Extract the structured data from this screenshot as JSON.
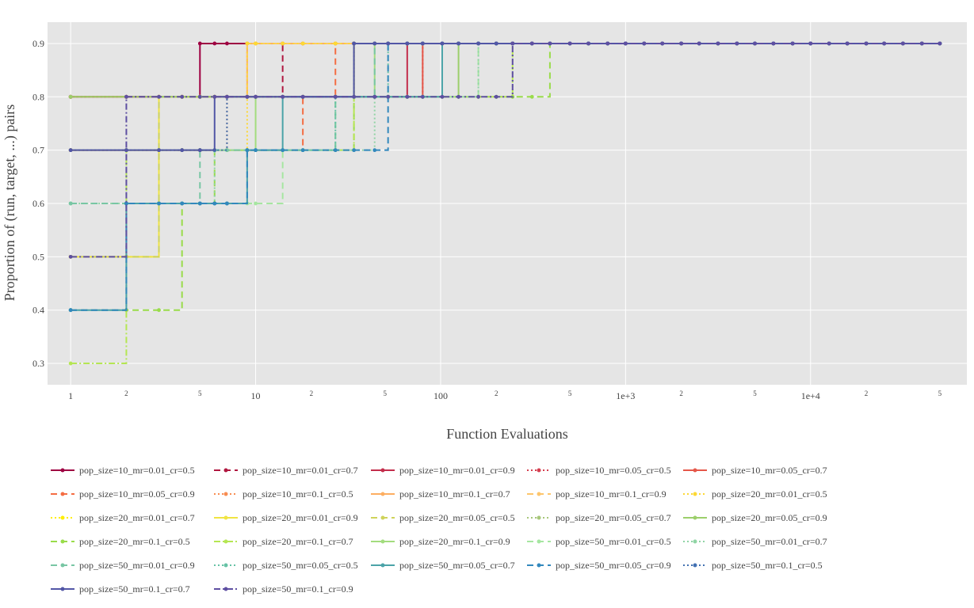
{
  "chart_data": {
    "type": "line",
    "line_shape": "step",
    "xlabel": "Function Evaluations",
    "ylabel": "Proportion of (run, target, ...) pairs",
    "x_scale": "log",
    "xlim": [
      0.75,
      70000
    ],
    "ylim": [
      0.26,
      0.94
    ],
    "y_ticks": [
      0.3,
      0.4,
      0.5,
      0.6,
      0.7,
      0.8,
      0.9
    ],
    "x_ticks": [
      {
        "value": 1,
        "label": "1",
        "major": true
      },
      {
        "value": 2,
        "label": "2",
        "major": false
      },
      {
        "value": 5,
        "label": "5",
        "major": false
      },
      {
        "value": 10,
        "label": "10",
        "major": true
      },
      {
        "value": 20,
        "label": "2",
        "major": false
      },
      {
        "value": 50,
        "label": "5",
        "major": false
      },
      {
        "value": 100,
        "label": "100",
        "major": true
      },
      {
        "value": 200,
        "label": "2",
        "major": false
      },
      {
        "value": 500,
        "label": "5",
        "major": false
      },
      {
        "value": 1000,
        "label": "1e+3",
        "major": true
      },
      {
        "value": 2000,
        "label": "2",
        "major": false
      },
      {
        "value": 5000,
        "label": "5",
        "major": false
      },
      {
        "value": 10000,
        "label": "1e+4",
        "major": true
      },
      {
        "value": 20000,
        "label": "2",
        "major": false
      },
      {
        "value": 50000,
        "label": "5",
        "major": false
      }
    ],
    "grid": true,
    "legend_position": "bottom",
    "x_end": 50000,
    "series": [
      {
        "name": "pop_size=10_mr=0.01_cr=0.5",
        "color": "#9e0142",
        "dash": "solid",
        "steps": [
          [
            1,
            0.8
          ],
          [
            5,
            0.9
          ]
        ]
      },
      {
        "name": "pop_size=10_mr=0.01_cr=0.7",
        "color": "#b0163f",
        "dash": "dash",
        "steps": [
          [
            1,
            0.8
          ],
          [
            14,
            0.9
          ]
        ]
      },
      {
        "name": "pop_size=10_mr=0.01_cr=0.9",
        "color": "#c32d4b",
        "dash": "solid",
        "steps": [
          [
            1,
            0.8
          ],
          [
            66,
            0.9
          ]
        ]
      },
      {
        "name": "pop_size=10_mr=0.05_cr=0.5",
        "color": "#d53e4f",
        "dash": "dot",
        "steps": [
          [
            1,
            0.8
          ],
          [
            80,
            0.9
          ]
        ]
      },
      {
        "name": "pop_size=10_mr=0.05_cr=0.7",
        "color": "#e55749",
        "dash": "solid",
        "steps": [
          [
            1,
            0.8
          ],
          [
            80,
            0.9
          ]
        ]
      },
      {
        "name": "pop_size=10_mr=0.05_cr=0.9",
        "color": "#f46d43",
        "dash": "dash",
        "steps": [
          [
            1,
            0.7
          ],
          [
            18,
            0.8
          ],
          [
            27,
            0.9
          ]
        ]
      },
      {
        "name": "pop_size=10_mr=0.1_cr=0.5",
        "color": "#f88d52",
        "dash": "dot",
        "steps": [
          [
            1,
            0.7
          ],
          [
            7,
            0.8
          ],
          [
            9,
            0.9
          ]
        ]
      },
      {
        "name": "pop_size=10_mr=0.1_cr=0.7",
        "color": "#fdae61",
        "dash": "solid",
        "steps": [
          [
            1,
            0.7
          ],
          [
            3,
            0.8
          ],
          [
            9,
            0.9
          ]
        ]
      },
      {
        "name": "pop_size=10_mr=0.1_cr=0.9",
        "color": "#fdc56c",
        "dash": "dash",
        "steps": [
          [
            1,
            0.7
          ],
          [
            3,
            0.8
          ],
          [
            9,
            0.9
          ]
        ]
      },
      {
        "name": "pop_size=20_mr=0.01_cr=0.5",
        "color": "#fdd835",
        "dash": "dot",
        "steps": [
          [
            1,
            0.7
          ],
          [
            9,
            0.8
          ],
          [
            9,
            0.9
          ]
        ]
      },
      {
        "name": "pop_size=20_mr=0.01_cr=0.7",
        "color": "#ffee00",
        "dash": "dot",
        "steps": [
          [
            1,
            0.5
          ],
          [
            3,
            0.8
          ],
          [
            34,
            0.9
          ]
        ]
      },
      {
        "name": "pop_size=20_mr=0.01_cr=0.9",
        "color": "#f0e442",
        "dash": "solid",
        "steps": [
          [
            1,
            0.5
          ],
          [
            3,
            0.8
          ],
          [
            34,
            0.9
          ]
        ]
      },
      {
        "name": "pop_size=20_mr=0.05_cr=0.5",
        "color": "#cfd35a",
        "dash": "dash",
        "steps": [
          [
            1,
            0.5
          ],
          [
            3,
            0.8
          ],
          [
            34,
            0.9
          ]
        ]
      },
      {
        "name": "pop_size=20_mr=0.05_cr=0.7",
        "color": "#a7c77a",
        "dash": "dot",
        "steps": [
          [
            1,
            0.8
          ],
          [
            34,
            0.9
          ]
        ]
      },
      {
        "name": "pop_size=20_mr=0.05_cr=0.9",
        "color": "#9ccf6b",
        "dash": "solid",
        "steps": [
          [
            1,
            0.8
          ],
          [
            125,
            0.9
          ]
        ]
      },
      {
        "name": "pop_size=20_mr=0.1_cr=0.5",
        "color": "#99dc4a",
        "dash": "dash",
        "steps": [
          [
            1,
            0.4
          ],
          [
            4,
            0.6
          ],
          [
            6,
            0.7
          ],
          [
            34,
            0.8
          ],
          [
            390,
            0.9
          ]
        ]
      },
      {
        "name": "pop_size=20_mr=0.1_cr=0.7",
        "color": "#b5e653",
        "dash": "dashdot",
        "steps": [
          [
            1,
            0.3
          ],
          [
            2,
            0.7
          ],
          [
            34,
            0.8
          ],
          [
            245,
            0.9
          ]
        ]
      },
      {
        "name": "pop_size=20_mr=0.1_cr=0.9",
        "color": "#a3dc7e",
        "dash": "solid",
        "steps": [
          [
            1,
            0.7
          ],
          [
            10,
            0.8
          ],
          [
            44,
            0.9
          ]
        ]
      },
      {
        "name": "pop_size=50_mr=0.01_cr=0.5",
        "color": "#a6e6a1",
        "dash": "dash",
        "steps": [
          [
            1,
            0.6
          ],
          [
            14,
            0.7
          ],
          [
            27,
            0.8
          ],
          [
            160,
            0.9
          ]
        ]
      },
      {
        "name": "pop_size=50_mr=0.01_cr=0.7",
        "color": "#90d4a5",
        "dash": "dot",
        "steps": [
          [
            1,
            0.6
          ],
          [
            6,
            0.7
          ],
          [
            44,
            0.8
          ],
          [
            160,
            0.9
          ]
        ]
      },
      {
        "name": "pop_size=50_mr=0.01_cr=0.9",
        "color": "#78c6a4",
        "dash": "dash",
        "steps": [
          [
            1,
            0.6
          ],
          [
            5,
            0.7
          ],
          [
            27,
            0.8
          ],
          [
            44,
            0.9
          ]
        ]
      },
      {
        "name": "pop_size=50_mr=0.05_cr=0.5",
        "color": "#66c2a5",
        "dash": "dot",
        "steps": [
          [
            1,
            0.4
          ],
          [
            2,
            0.6
          ],
          [
            9,
            0.7
          ],
          [
            27,
            0.8
          ],
          [
            52,
            0.9
          ]
        ]
      },
      {
        "name": "pop_size=50_mr=0.05_cr=0.7",
        "color": "#4ba3a8",
        "dash": "solid",
        "steps": [
          [
            1,
            0.4
          ],
          [
            2,
            0.6
          ],
          [
            9,
            0.7
          ],
          [
            14,
            0.8
          ],
          [
            102,
            0.9
          ]
        ]
      },
      {
        "name": "pop_size=50_mr=0.05_cr=0.9",
        "color": "#3288bd",
        "dash": "dash",
        "steps": [
          [
            1,
            0.4
          ],
          [
            2,
            0.6
          ],
          [
            9,
            0.7
          ],
          [
            52,
            0.8
          ],
          [
            52,
            0.9
          ]
        ]
      },
      {
        "name": "pop_size=50_mr=0.1_cr=0.5",
        "color": "#4371b2",
        "dash": "dot",
        "steps": [
          [
            1,
            0.7
          ],
          [
            7,
            0.8
          ],
          [
            34,
            0.9
          ]
        ]
      },
      {
        "name": "pop_size=50_mr=0.1_cr=0.7",
        "color": "#5256a6",
        "dash": "solid",
        "steps": [
          [
            1,
            0.7
          ],
          [
            6,
            0.8
          ],
          [
            34,
            0.9
          ]
        ]
      },
      {
        "name": "pop_size=50_mr=0.1_cr=0.9",
        "color": "#5e4fa2",
        "dash": "dashdot",
        "steps": [
          [
            1,
            0.5
          ],
          [
            2,
            0.8
          ],
          [
            245,
            0.9
          ]
        ]
      }
    ]
  }
}
